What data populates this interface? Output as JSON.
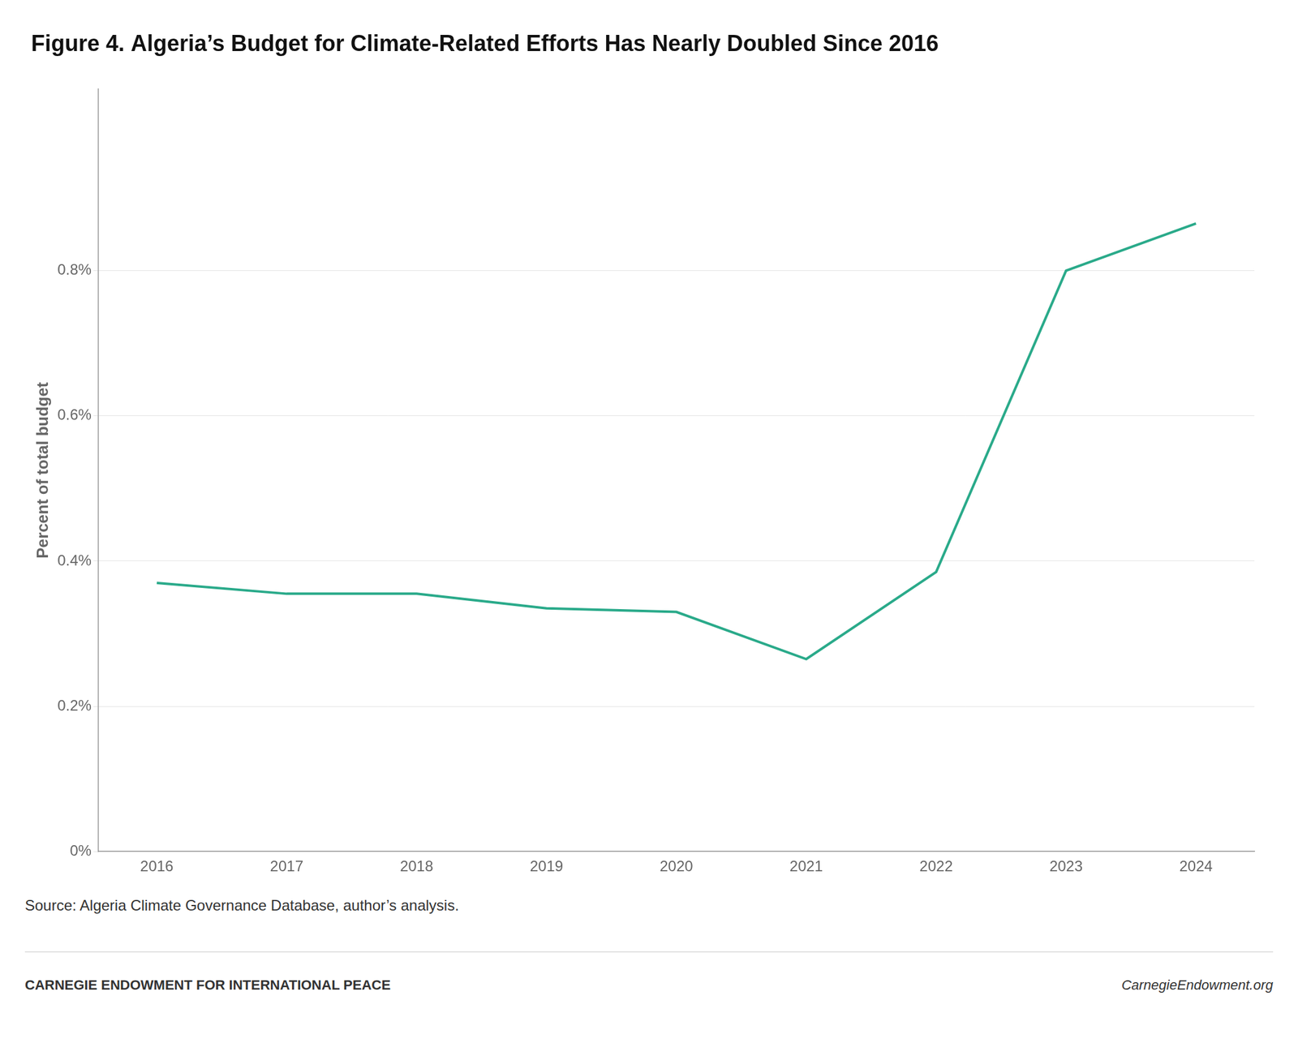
{
  "chart_data": {
    "type": "line",
    "title": "Figure 4. Algeria’s Budget for Climate-Related Efforts Has Nearly Doubled Since 2016",
    "y_label": "Percent of total budget",
    "x": [
      2016,
      2017,
      2018,
      2019,
      2020,
      2021,
      2022,
      2023,
      2024
    ],
    "values": [
      0.0037,
      0.00355,
      0.00355,
      0.00335,
      0.0033,
      0.00265,
      0.00385,
      0.008,
      0.00865
    ],
    "color": "#2aaa8a",
    "xlim": [
      2015.55,
      2024.45
    ],
    "xticks": [
      2016,
      2017,
      2018,
      2019,
      2020,
      2021,
      2022,
      2023,
      2024
    ],
    "ylim": [
      0,
      0.0105
    ],
    "yticks": [
      {
        "value": 0,
        "label": "0%"
      },
      {
        "value": 0.002,
        "label": "0.2%"
      },
      {
        "value": 0.004,
        "label": "0.4%"
      },
      {
        "value": 0.006,
        "label": "0.6%"
      },
      {
        "value": 0.008,
        "label": "0.8%"
      }
    ],
    "grid": "y",
    "source": "Source: Algeria Climate Governance Database, author’s analysis.",
    "annotations": [
      "CARNEGIE ENDOWMENT FOR INTERNATIONAL PEACE",
      "CarnegieEndowment.org"
    ]
  }
}
